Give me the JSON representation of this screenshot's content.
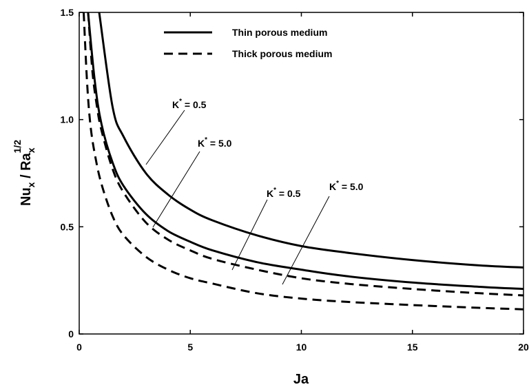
{
  "chart_data": {
    "type": "line",
    "xlabel": "Ja",
    "ylabel": {
      "a": "Nu",
      "a_sub": "x",
      "sep": " / Ra",
      "b_sub": "x",
      "b_sup": "1/2"
    },
    "xlim": [
      0,
      20
    ],
    "ylim": [
      0,
      1.5
    ],
    "xticks": [
      0,
      5,
      10,
      15,
      20
    ],
    "yticks": [
      0,
      0.5,
      1.0,
      1.5
    ],
    "ytick_labels": [
      "0",
      "0.5",
      "1.0",
      "1.5"
    ],
    "grid": false,
    "legend_position": "top-center",
    "legend": [
      {
        "label": "Thin porous medium",
        "style": "solid"
      },
      {
        "label": "Thick porous medium",
        "style": "dashed"
      }
    ],
    "series": [
      {
        "medium": "Thin porous medium",
        "style": "solid",
        "k": "0.5",
        "x": [
          0.9,
          1.5,
          2,
          3,
          4,
          5,
          6,
          8,
          10,
          12,
          15,
          18,
          20
        ],
        "y": [
          1.5,
          1.06,
          0.92,
          0.75,
          0.65,
          0.58,
          0.53,
          0.46,
          0.41,
          0.38,
          0.345,
          0.32,
          0.31
        ]
      },
      {
        "medium": "Thin porous medium",
        "style": "solid",
        "k": "5.0",
        "x": [
          0.4,
          0.7,
          1,
          1.5,
          2,
          3,
          4,
          5,
          6,
          8,
          10,
          12,
          15,
          18,
          20
        ],
        "y": [
          1.5,
          1.18,
          0.98,
          0.8,
          0.69,
          0.56,
          0.48,
          0.43,
          0.39,
          0.335,
          0.3,
          0.27,
          0.24,
          0.22,
          0.21
        ]
      },
      {
        "medium": "Thick porous medium",
        "style": "dashed",
        "k": "0.5",
        "x": [
          0.4,
          0.6,
          0.8,
          1,
          1.5,
          2,
          3,
          4,
          5,
          6,
          8,
          10,
          12,
          15,
          18,
          20
        ],
        "y": [
          1.5,
          1.22,
          1.06,
          0.95,
          0.77,
          0.66,
          0.52,
          0.44,
          0.39,
          0.35,
          0.3,
          0.26,
          0.235,
          0.21,
          0.19,
          0.18
        ]
      },
      {
        "medium": "Thick porous medium",
        "style": "dashed",
        "k": "5.0",
        "x": [
          0.2,
          0.35,
          0.5,
          0.7,
          1,
          1.5,
          2,
          3,
          4,
          5,
          6,
          8,
          10,
          12,
          15,
          18,
          20
        ],
        "y": [
          1.5,
          1.18,
          0.98,
          0.84,
          0.7,
          0.55,
          0.46,
          0.36,
          0.3,
          0.26,
          0.235,
          0.19,
          0.165,
          0.15,
          0.135,
          0.122,
          0.115
        ]
      }
    ],
    "annotations": [
      {
        "text": "K",
        "sup": "*",
        "rest": " = 0.5"
      },
      {
        "text": "K",
        "sup": "*",
        "rest": " = 5.0"
      },
      {
        "text": "K",
        "sup": "*",
        "rest": " = 0.5"
      },
      {
        "text": "K",
        "sup": "*",
        "rest": " = 5.0"
      }
    ]
  }
}
